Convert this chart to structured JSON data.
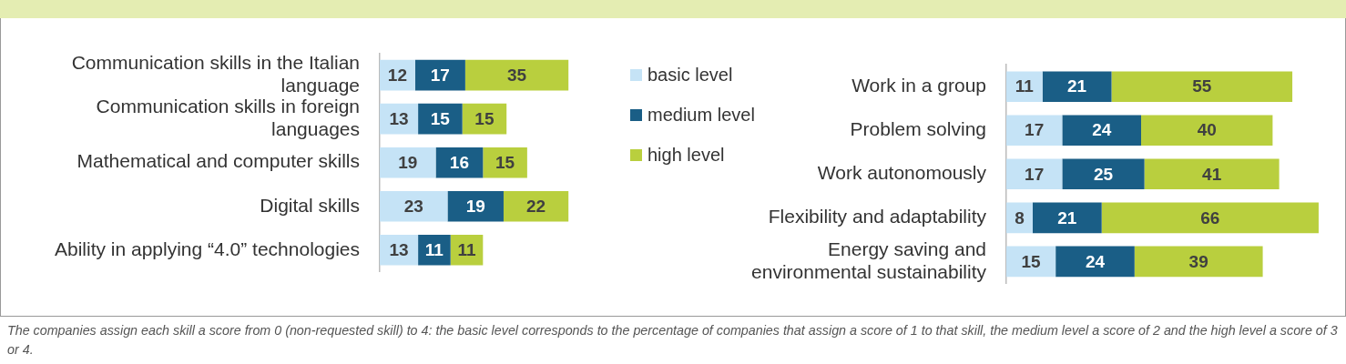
{
  "chart_data": [
    {
      "type": "bar",
      "orientation": "horizontal",
      "stacked": true,
      "data_labels": true,
      "tick_labels": "y",
      "legend": "right",
      "categories": [
        "Communication skills in the Italian language",
        "Communication skills in foreign languages",
        "Mathematical and computer skills",
        "Digital skills",
        "Ability in applying “4.0” technologies"
      ],
      "series": [
        {
          "name": "basic level",
          "color": "#c5e3f6",
          "values": [
            12,
            13,
            19,
            23,
            13
          ]
        },
        {
          "name": "medium level",
          "color": "#1a5e86",
          "values": [
            17,
            15,
            16,
            19,
            11
          ]
        },
        {
          "name": "high level",
          "color": "#b9cf3e",
          "values": [
            35,
            15,
            15,
            22,
            11
          ]
        }
      ],
      "annotations": [
        "The companies assign each skill a score from 0 (non-requested skill) to 4: the basic level corresponds to the percentage of companies that assign a score of 1 to that skill, the medium level a score of 2 and the high level a score of 3 or 4."
      ]
    },
    {
      "type": "bar",
      "orientation": "horizontal",
      "stacked": true,
      "data_labels": true,
      "tick_labels": "y",
      "categories": [
        "Work in a group",
        "Problem solving",
        "Work autonomously",
        "Flexibility and adaptability",
        "Energy saving and environmental sustainability"
      ],
      "series": [
        {
          "color": "#c5e3f6",
          "values": [
            11,
            17,
            17,
            8,
            15
          ]
        },
        {
          "color": "#1a5e86",
          "values": [
            21,
            24,
            25,
            21,
            24
          ]
        },
        {
          "color": "#b9cf3e",
          "values": [
            55,
            40,
            41,
            66,
            39
          ]
        }
      ]
    }
  ]
}
